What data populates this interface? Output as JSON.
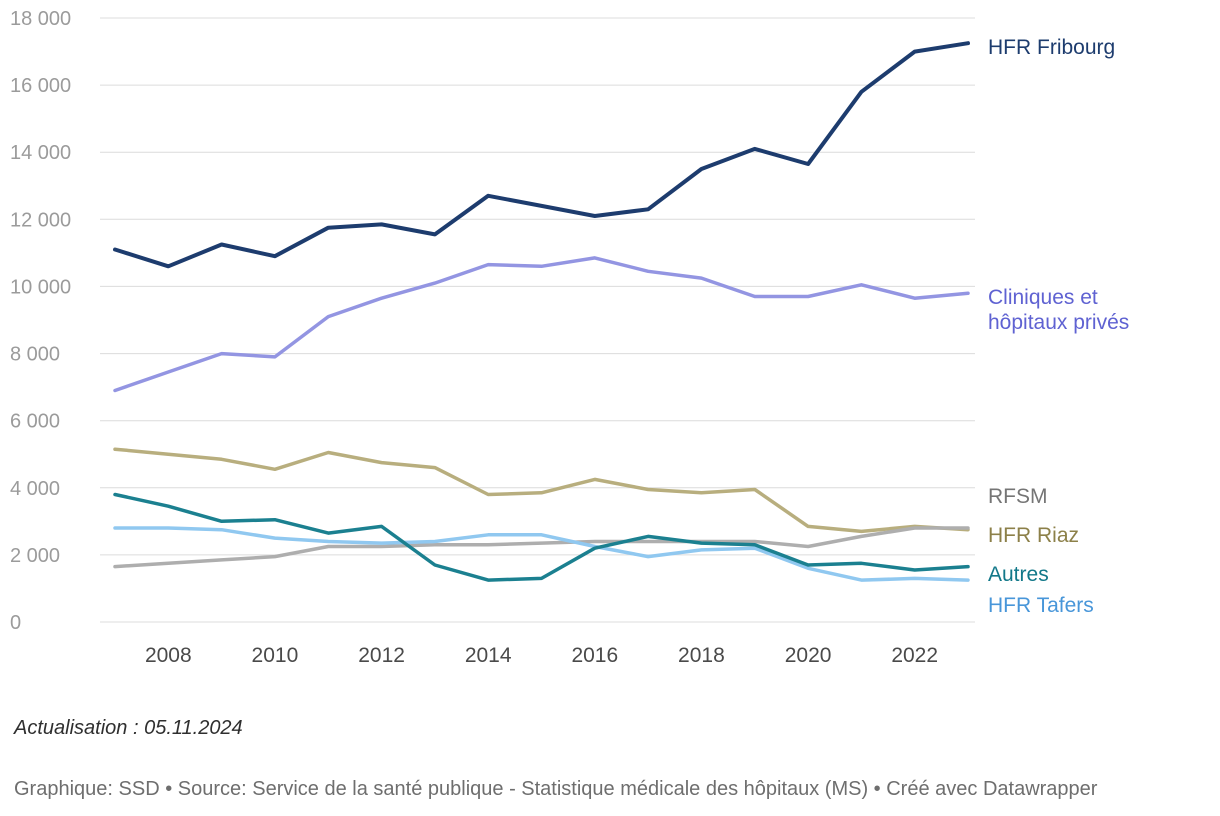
{
  "footer": {
    "update_text": "Actualisation : 05.11.2024",
    "attribution": "Graphique: SSD • Source: Service de la santé publique - Statistique médicale des hôpitaux (MS) • Créé avec Datawrapper"
  },
  "chart_data": {
    "type": "line",
    "title": "",
    "xlabel": "",
    "ylabel": "",
    "grid": true,
    "legend_position": "right",
    "x_range": [
      2007,
      2023
    ],
    "ylim": [
      0,
      18000
    ],
    "x": [
      2007,
      2008,
      2009,
      2010,
      2011,
      2012,
      2013,
      2014,
      2015,
      2016,
      2017,
      2018,
      2019,
      2020,
      2021,
      2022,
      2023
    ],
    "x_ticks": [
      2008,
      2010,
      2012,
      2014,
      2016,
      2018,
      2020,
      2022
    ],
    "y_ticks": [
      {
        "value": 0,
        "label": "0"
      },
      {
        "value": 2000,
        "label": "2 000"
      },
      {
        "value": 4000,
        "label": "4 000"
      },
      {
        "value": 6000,
        "label": "6 000"
      },
      {
        "value": 8000,
        "label": "8 000"
      },
      {
        "value": 10000,
        "label": "10 000"
      },
      {
        "value": 12000,
        "label": "12 000"
      },
      {
        "value": 14000,
        "label": "14 000"
      },
      {
        "value": 16000,
        "label": "16 000"
      },
      {
        "value": 18000,
        "label": "18 000"
      }
    ],
    "gridline_color": "#dcdcdc",
    "series": [
      {
        "id": "cliniques-prives",
        "name": "Cliniques et hôpitaux privés",
        "color": "#9395e2",
        "label_color": "#5f62d2",
        "values": [
          6900,
          7450,
          8000,
          7900,
          9100,
          9650,
          10100,
          10650,
          10600,
          10850,
          10450,
          10250,
          9700,
          9700,
          10050,
          9650,
          9800
        ]
      },
      {
        "id": "hfr-riaz",
        "name": "HFR Riaz",
        "color": "#b8ae7e",
        "label_color": "#8c8049",
        "values": [
          5150,
          5000,
          4850,
          4550,
          5050,
          4750,
          4600,
          3800,
          3850,
          4250,
          3950,
          3850,
          3950,
          2850,
          2700,
          2850,
          2750
        ]
      },
      {
        "id": "rfsm",
        "name": "RFSM",
        "color": "#aeaeae",
        "label_color": "#757575",
        "values": [
          1650,
          1750,
          1850,
          1950,
          2250,
          2250,
          2300,
          2300,
          2350,
          2400,
          2400,
          2400,
          2400,
          2250,
          2550,
          2800,
          2800
        ]
      },
      {
        "id": "hfr-tafers",
        "name": "HFR Tafers",
        "color": "#90c8f0",
        "label_color": "#4896d9",
        "values": [
          2800,
          2800,
          2750,
          2500,
          2400,
          2350,
          2400,
          2600,
          2600,
          2250,
          1950,
          2150,
          2200,
          1600,
          1250,
          1300,
          1250
        ]
      },
      {
        "id": "autres",
        "name": "Autres",
        "color": "#1b8090",
        "label_color": "#127889",
        "values": [
          3800,
          3450,
          3000,
          3050,
          2650,
          2850,
          1700,
          1250,
          1300,
          2200,
          2550,
          2350,
          2300,
          1700,
          1750,
          1550,
          1650
        ]
      },
      {
        "id": "hfr-fribourg",
        "name": "HFR Fribourg",
        "color": "#1d3c6e",
        "label_color": "#1d3c6e",
        "values": [
          11100,
          10600,
          11250,
          10900,
          11750,
          11850,
          11550,
          12700,
          12400,
          12100,
          12300,
          13500,
          14100,
          13650,
          15800,
          17000,
          17250
        ]
      }
    ]
  }
}
